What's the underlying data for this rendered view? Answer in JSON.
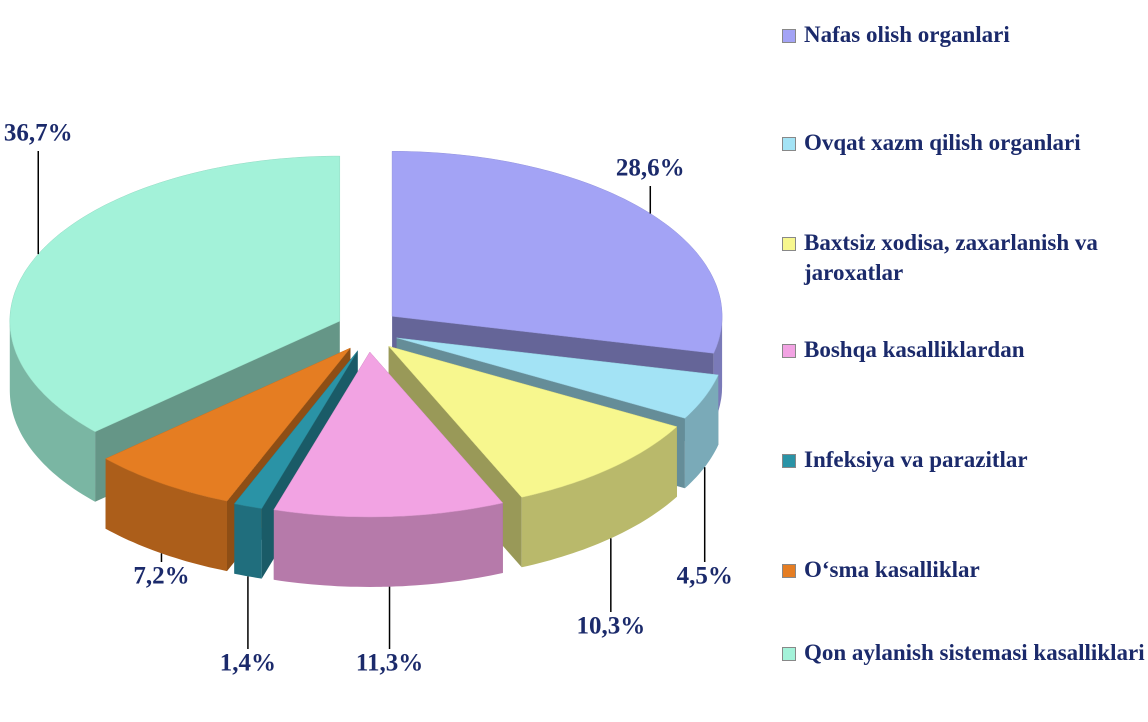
{
  "chart_data": {
    "type": "pie",
    "categories": [
      "Nafas olish organlari",
      "Ovqat xazm qilish organlari",
      "Baxtsiz xodisa, zaxarlanish va jaroxatlar",
      "Boshqa kasalliklardan",
      "Infeksiya va parazitlar",
      "O‘sma kasalliklar",
      "Qon aylanish sistemasi kasalliklari"
    ],
    "values": [
      28.6,
      4.5,
      10.3,
      11.3,
      1.4,
      7.2,
      36.7
    ],
    "value_labels": [
      "28,6%",
      "4,5%",
      "10,3%",
      "11,3%",
      "1,4%",
      "7,2%",
      "36,7%"
    ],
    "colors": [
      "#a3a3f5",
      "#a3e3f5",
      "#f7f78e",
      "#f2a3e3",
      "#2a93a6",
      "#e57d22",
      "#a3f2d9"
    ],
    "legend": "right"
  }
}
